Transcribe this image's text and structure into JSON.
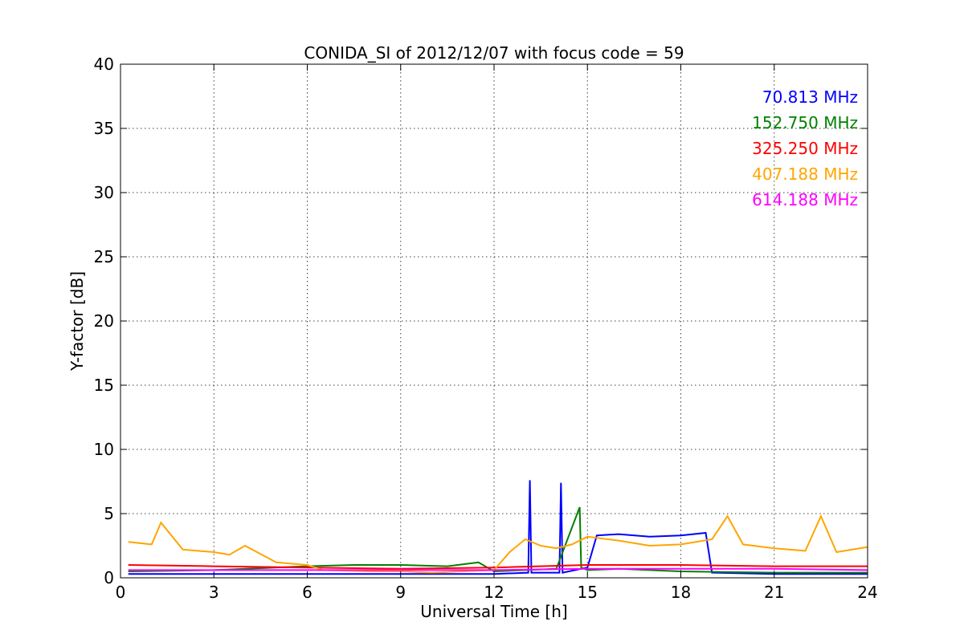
{
  "chart_data": {
    "type": "line",
    "title": "CONIDA_SI of 2012/12/07 with focus code = 59",
    "xlabel": "Universal Time [h]",
    "ylabel": "Y-factor [dB]",
    "xlim": [
      0,
      24
    ],
    "ylim": [
      0,
      40
    ],
    "xticks": [
      0,
      3,
      6,
      9,
      12,
      15,
      18,
      21,
      24
    ],
    "yticks": [
      0,
      5,
      10,
      15,
      20,
      25,
      30,
      35,
      40
    ],
    "grid": true,
    "legend_position": "top-right",
    "series": [
      {
        "name": "70.813 MHz",
        "color": "#0000ff",
        "x": [
          0.25,
          3,
          6,
          9,
          12,
          13.1,
          13.15,
          13.2,
          14.1,
          14.15,
          14.2,
          15,
          15.3,
          16,
          17,
          18,
          18.8,
          19,
          21,
          24
        ],
        "y": [
          0.3,
          0.3,
          0.3,
          0.3,
          0.3,
          0.4,
          7.6,
          0.4,
          0.4,
          7.4,
          0.4,
          0.8,
          3.3,
          3.4,
          3.2,
          3.3,
          3.5,
          0.4,
          0.3,
          0.3
        ]
      },
      {
        "name": "152.750 MHz",
        "color": "#008000",
        "x": [
          0.25,
          3,
          6,
          7.5,
          9,
          10.5,
          11.5,
          12,
          13,
          14,
          14.75,
          14.8,
          15,
          16,
          18,
          21,
          24
        ],
        "y": [
          0.5,
          0.6,
          0.9,
          1.0,
          1.0,
          0.9,
          1.2,
          0.5,
          0.6,
          0.7,
          5.5,
          0.8,
          0.6,
          0.7,
          0.5,
          0.4,
          0.4
        ]
      },
      {
        "name": "325.250 MHz",
        "color": "#ff0000",
        "x": [
          0.25,
          3,
          6,
          9,
          12,
          15,
          18,
          21,
          24
        ],
        "y": [
          1.0,
          0.9,
          0.8,
          0.7,
          0.8,
          1.0,
          1.0,
          0.9,
          0.9
        ]
      },
      {
        "name": "407.188 MHz",
        "color": "#ffa500",
        "x": [
          0.25,
          1,
          1.3,
          2,
          3,
          3.5,
          4,
          5,
          6,
          6.5,
          8,
          9,
          10,
          11,
          12,
          12.5,
          13,
          13.5,
          14,
          14.5,
          15,
          16,
          17,
          18,
          19,
          19.5,
          20,
          21,
          22,
          22.5,
          23,
          24
        ],
        "y": [
          2.8,
          2.6,
          4.3,
          2.2,
          2.0,
          1.8,
          2.5,
          1.2,
          1.0,
          0.6,
          0.5,
          0.5,
          0.4,
          0.5,
          0.6,
          2.0,
          3.0,
          2.5,
          2.3,
          2.6,
          3.2,
          2.9,
          2.5,
          2.6,
          3.0,
          4.8,
          2.6,
          2.3,
          2.1,
          4.8,
          2.0,
          2.4
        ]
      },
      {
        "name": "614.188 MHz",
        "color": "#ff00ff",
        "x": [
          0.25,
          3,
          6,
          9,
          12,
          15,
          18,
          21,
          24
        ],
        "y": [
          0.6,
          0.6,
          0.6,
          0.6,
          0.6,
          0.7,
          0.7,
          0.7,
          0.6
        ]
      }
    ]
  }
}
